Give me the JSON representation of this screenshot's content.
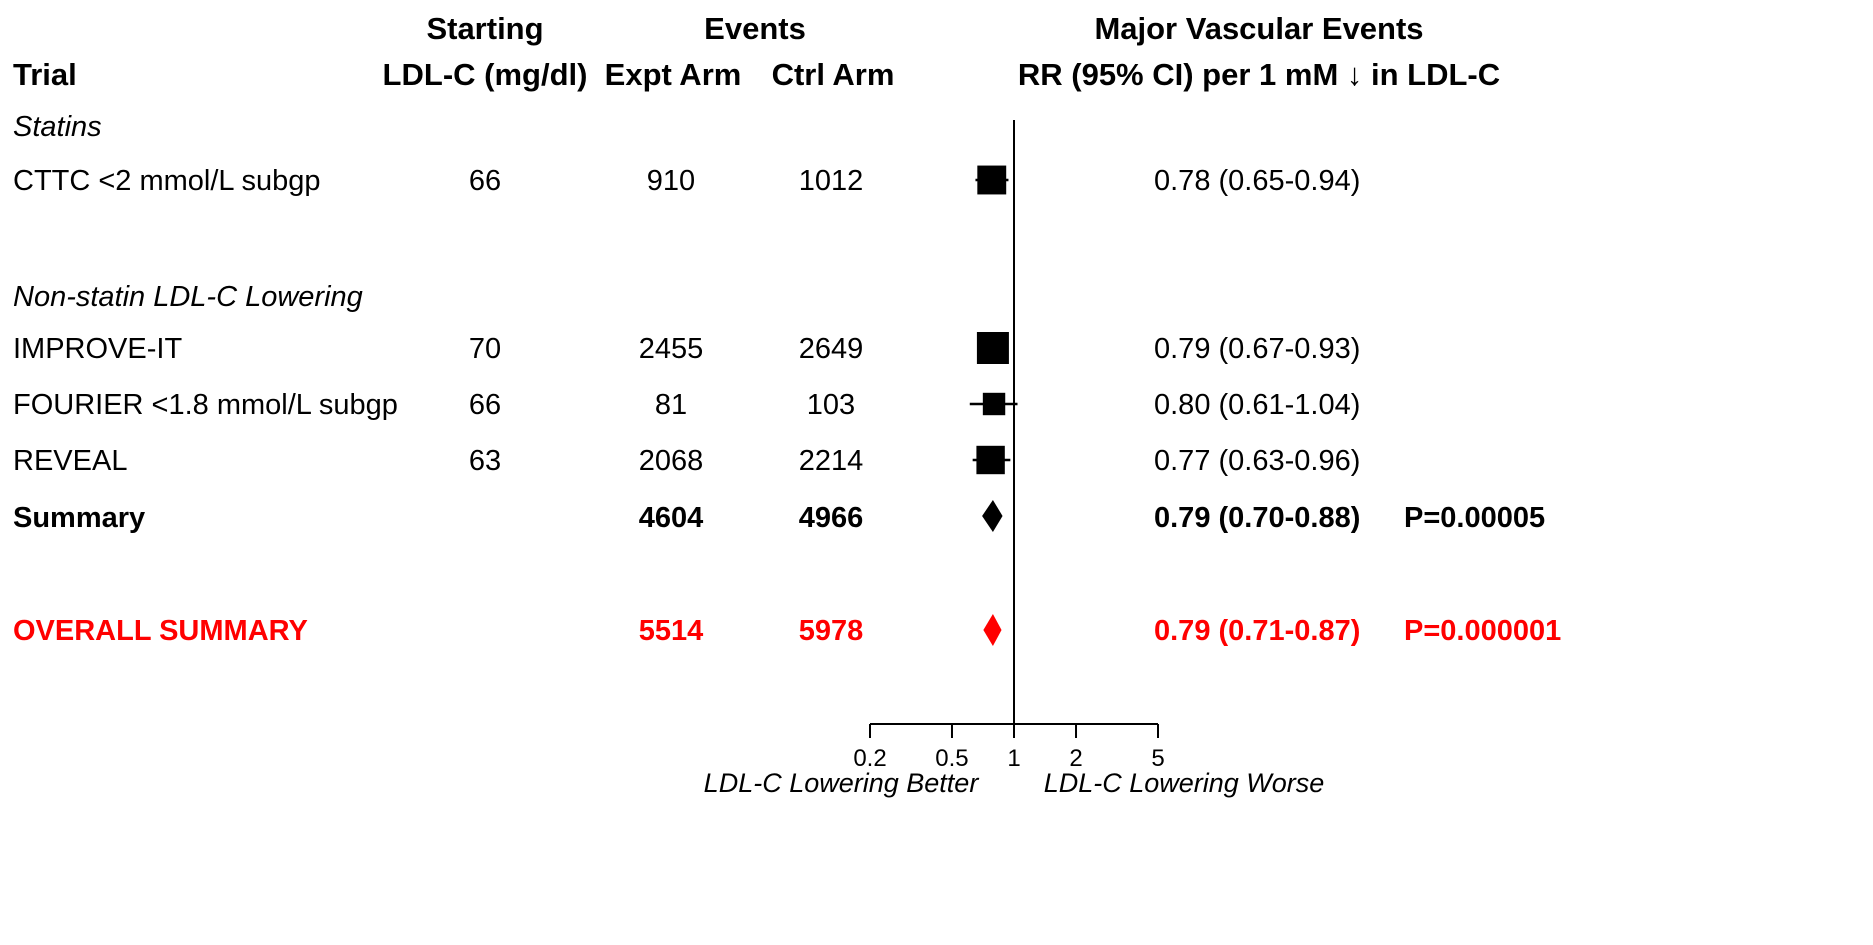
{
  "headers": {
    "trial": "Trial",
    "starting_line1": "Starting",
    "starting_line2": "LDL-C (mg/dl)",
    "events": "Events",
    "expt_arm": "Expt Arm",
    "ctrl_arm": "Ctrl Arm",
    "outcome_line1": "Major Vascular Events",
    "outcome_line2": "RR (95% CI) per 1 mM ↓ in LDL-C"
  },
  "groups": {
    "statins": "Statins",
    "non_statin": "Non-statin LDL-C Lowering"
  },
  "rows": [
    {
      "trial": "CTTC <2 mmol/L subgp",
      "ldl": "66",
      "expt": "910",
      "ctrl": "1012",
      "ci_text": "0.78 (0.65-0.94)",
      "p": ""
    },
    {
      "trial": "IMPROVE-IT",
      "ldl": "70",
      "expt": "2455",
      "ctrl": "2649",
      "ci_text": "0.79 (0.67-0.93)",
      "p": ""
    },
    {
      "trial": "FOURIER <1.8 mmol/L subgp",
      "ldl": "66",
      "expt": "81",
      "ctrl": "103",
      "ci_text": "0.80 (0.61-1.04)",
      "p": ""
    },
    {
      "trial": "REVEAL",
      "ldl": "63",
      "expt": "2068",
      "ctrl": "2214",
      "ci_text": "0.77 (0.63-0.96)",
      "p": ""
    },
    {
      "trial": "Summary",
      "ldl": "",
      "expt": "4604",
      "ctrl": "4966",
      "ci_text": "0.79 (0.70-0.88)",
      "p": "P=0.00005"
    },
    {
      "trial": "OVERALL SUMMARY",
      "ldl": "",
      "expt": "5514",
      "ctrl": "5978",
      "ci_text": "0.79 (0.71-0.87)",
      "p": "P=0.000001"
    }
  ],
  "chart_data": {
    "type": "forest",
    "scale": "log",
    "xlim": [
      0.2,
      5
    ],
    "reference_line": 1,
    "x_ticks": [
      0.2,
      0.5,
      1,
      2,
      5
    ],
    "x_tick_labels": [
      "0.2",
      "0.5",
      "1",
      "2",
      "5"
    ],
    "x_label_left": "LDL-C Lowering Better",
    "x_label_right": "LDL-C Lowering Worse",
    "colors": {
      "default": "#000000",
      "overall": "#ff0000"
    },
    "points": [
      {
        "label": "CTTC <2 mmol/L subgp",
        "rr": 0.78,
        "lo": 0.65,
        "hi": 0.94,
        "marker": "square",
        "weight": 0.62
      },
      {
        "label": "IMPROVE-IT",
        "rr": 0.79,
        "lo": 0.67,
        "hi": 0.93,
        "marker": "square",
        "weight": 0.75
      },
      {
        "label": "FOURIER <1.8 mmol/L subgp",
        "rr": 0.8,
        "lo": 0.61,
        "hi": 1.04,
        "marker": "square",
        "weight": 0.35
      },
      {
        "label": "REVEAL",
        "rr": 0.77,
        "lo": 0.63,
        "hi": 0.96,
        "marker": "square",
        "weight": 0.6
      },
      {
        "label": "Summary",
        "rr": 0.79,
        "lo": 0.7,
        "hi": 0.88,
        "marker": "diamond"
      },
      {
        "label": "OVERALL SUMMARY",
        "rr": 0.79,
        "lo": 0.71,
        "hi": 0.87,
        "marker": "diamond",
        "color": "overall"
      }
    ]
  }
}
